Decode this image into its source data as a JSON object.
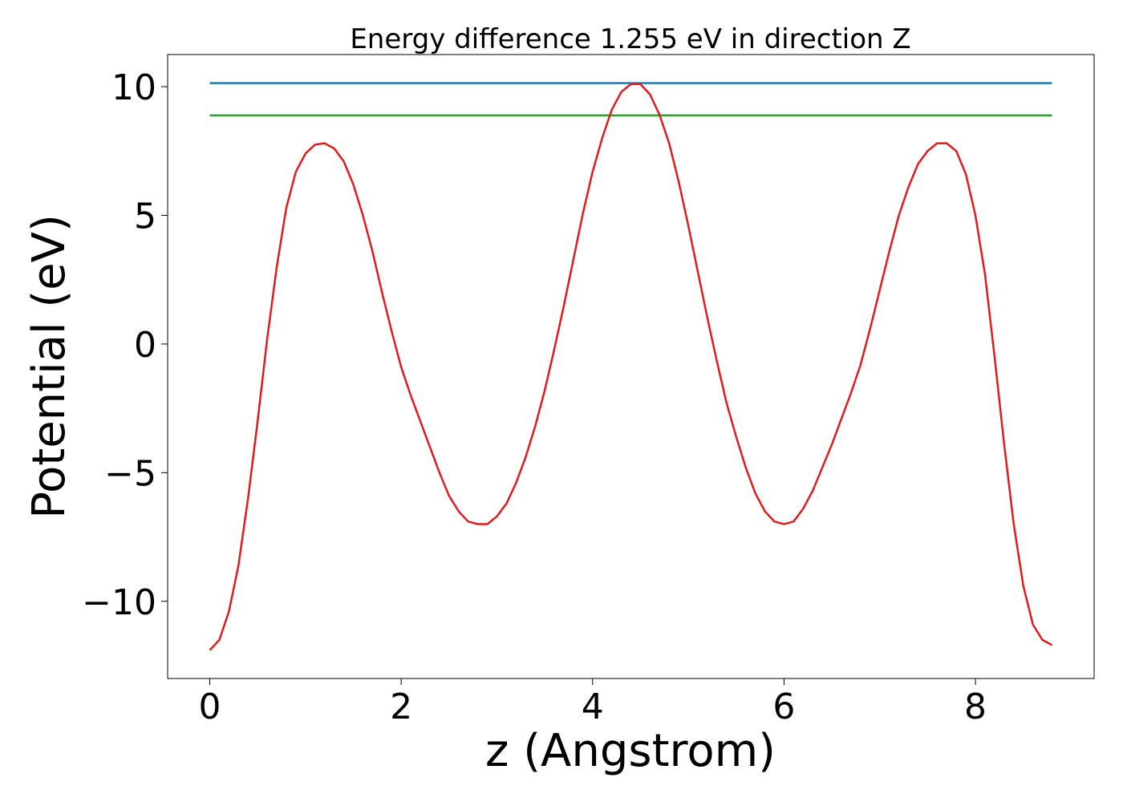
{
  "chart_data": {
    "type": "line",
    "title": "Energy difference 1.255 eV in direction Z",
    "xlabel": "z (Angstrom)",
    "ylabel": "Potential (eV)",
    "xlim": [
      -0.44,
      9.24
    ],
    "ylim": [
      -13.0,
      11.25
    ],
    "xticks": [
      0,
      2,
      4,
      6,
      8
    ],
    "yticks": [
      {
        "value": -10,
        "label": "−10"
      },
      {
        "value": -5,
        "label": "−5"
      },
      0,
      5,
      10
    ],
    "series": [
      {
        "color": "#1f77b4",
        "x": [
          0,
          8.8
        ],
        "values": [
          10.14,
          10.14
        ]
      },
      {
        "color": "#2ca02c",
        "x": [
          0,
          8.8
        ],
        "values": [
          8.885,
          8.885
        ]
      },
      {
        "color": "#e31a1c",
        "x": [
          0,
          0.1,
          0.2,
          0.3,
          0.4,
          0.5,
          0.6,
          0.7,
          0.8,
          0.9,
          1.0,
          1.1,
          1.2,
          1.3,
          1.4,
          1.5,
          1.6,
          1.7,
          1.8,
          1.9,
          2.0,
          2.1,
          2.2,
          2.3,
          2.4,
          2.5,
          2.6,
          2.7,
          2.8,
          2.9,
          3.0,
          3.1,
          3.2,
          3.3,
          3.4,
          3.5,
          3.6,
          3.7,
          3.8,
          3.9,
          4.0,
          4.1,
          4.2,
          4.3,
          4.4,
          4.5,
          4.6,
          4.7,
          4.8,
          4.9,
          5.0,
          5.1,
          5.2,
          5.3,
          5.4,
          5.5,
          5.6,
          5.7,
          5.8,
          5.9,
          6.0,
          6.1,
          6.2,
          6.3,
          6.4,
          6.5,
          6.6,
          6.7,
          6.8,
          6.9,
          7.0,
          7.1,
          7.2,
          7.3,
          7.4,
          7.5,
          7.6,
          7.7,
          7.8,
          7.9,
          8.0,
          8.1,
          8.2,
          8.3,
          8.4,
          8.5,
          8.6,
          8.7,
          8.8
        ],
        "values": [
          -11.9,
          -11.5,
          -10.4,
          -8.6,
          -6.0,
          -3.0,
          0.2,
          3.0,
          5.3,
          6.7,
          7.4,
          7.75,
          7.8,
          7.6,
          7.1,
          6.2,
          5.0,
          3.6,
          2.0,
          0.5,
          -0.9,
          -2.0,
          -3.0,
          -4.0,
          -5.0,
          -5.9,
          -6.5,
          -6.9,
          -7.0,
          -7.0,
          -6.7,
          -6.2,
          -5.4,
          -4.4,
          -3.2,
          -1.8,
          -0.2,
          1.5,
          3.3,
          5.1,
          6.7,
          8.0,
          9.1,
          9.8,
          10.1,
          10.1,
          9.7,
          8.9,
          7.8,
          6.3,
          4.6,
          2.8,
          1.0,
          -0.7,
          -2.3,
          -3.6,
          -4.8,
          -5.8,
          -6.5,
          -6.9,
          -7.0,
          -6.9,
          -6.4,
          -5.7,
          -4.8,
          -3.9,
          -2.9,
          -1.9,
          -0.8,
          0.6,
          2.1,
          3.6,
          5.0,
          6.1,
          7.0,
          7.5,
          7.8,
          7.8,
          7.5,
          6.6,
          5.0,
          2.7,
          -0.5,
          -3.9,
          -7.0,
          -9.4,
          -10.9,
          -11.5,
          -11.7
        ]
      }
    ]
  }
}
